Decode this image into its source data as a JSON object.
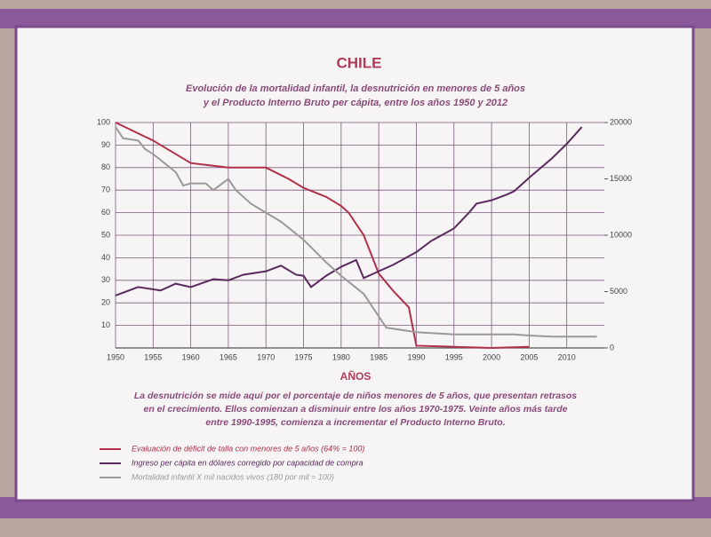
{
  "chart_data": {
    "type": "line",
    "title": "CHILE",
    "subtitle": [
      "Evolución de la mortalidad infantil, la desnutrición en menores de 5 años",
      "y el Producto Interno Bruto per cápita, entre los años 1950 y 2012"
    ],
    "x_label": "AÑOS",
    "note": [
      "La desnutrición se mide aquí por el porcentaje de niños menores de 5 años, que presentan retrasos",
      "en el crecimiento. Ellos comienzan a disminuir entre los años 1970-1975. Veinte años más tarde",
      "entre 1990-1995, comienza a incrementar el Producto Interno Bruto."
    ],
    "xlim": [
      1950,
      2015
    ],
    "xticks": [
      1950,
      1955,
      1960,
      1965,
      1970,
      1975,
      1980,
      1985,
      1990,
      1995,
      2000,
      2005,
      2010
    ],
    "ylim": [
      0,
      100
    ],
    "yticks": [
      10,
      20,
      30,
      40,
      50,
      60,
      70,
      80,
      90,
      100
    ],
    "y2lim": [
      0,
      20000
    ],
    "y2ticks": [
      0,
      5000,
      10000,
      15000,
      20000
    ],
    "grid": true,
    "series": [
      {
        "name": "Evaluación de déficit de talla con menores de 5 años (64% = 100)",
        "color": "#b0304a",
        "x": [
          1950,
          1955,
          1958,
          1960,
          1965,
          1970,
          1973,
          1975,
          1978,
          1980,
          1981,
          1983,
          1985,
          1987,
          1989,
          1990,
          1995,
          2000,
          2005
        ],
        "values": [
          100,
          92,
          86,
          82,
          80,
          80,
          75,
          71,
          67,
          63,
          60,
          50,
          33,
          25,
          18,
          1,
          0.5,
          0,
          0.5
        ]
      },
      {
        "name": "Ingreso per cápita en dólares corregido por capacidad de compra",
        "color": "#5a2a5e",
        "axis": "y2",
        "x": [
          1950,
          1953,
          1956,
          1958,
          1960,
          1963,
          1965,
          1967,
          1970,
          1972,
          1974,
          1975,
          1976,
          1978,
          1980,
          1982,
          1983,
          1985,
          1987,
          1990,
          1992,
          1995,
          1997,
          1998,
          2000,
          2002,
          2003,
          2005,
          2008,
          2010,
          2012
        ],
        "values": [
          4650,
          5400,
          5100,
          5700,
          5400,
          6100,
          6000,
          6500,
          6800,
          7300,
          6500,
          6400,
          5400,
          6400,
          7200,
          7800,
          6200,
          6800,
          7400,
          8500,
          9500,
          10600,
          12000,
          12800,
          13100,
          13600,
          13900,
          15100,
          16800,
          18100,
          19600
        ]
      },
      {
        "name": "Mortalidad infantil X mil nacidos vivos (180 por mil = 100)",
        "color": "#9a9a9a",
        "x": [
          1950,
          1951,
          1953,
          1954,
          1955,
          1958,
          1959,
          1960,
          1962,
          1963,
          1965,
          1966,
          1968,
          1970,
          1972,
          1975,
          1978,
          1980,
          1983,
          1986,
          1990,
          1995,
          2000,
          2003,
          2005,
          2008,
          2014
        ],
        "values": [
          98,
          93,
          92,
          88,
          86,
          78,
          72,
          73,
          73,
          70,
          75,
          70,
          64,
          60,
          56,
          48,
          38,
          32,
          24,
          9,
          7,
          6,
          6,
          6,
          5.5,
          5,
          5
        ]
      }
    ]
  }
}
